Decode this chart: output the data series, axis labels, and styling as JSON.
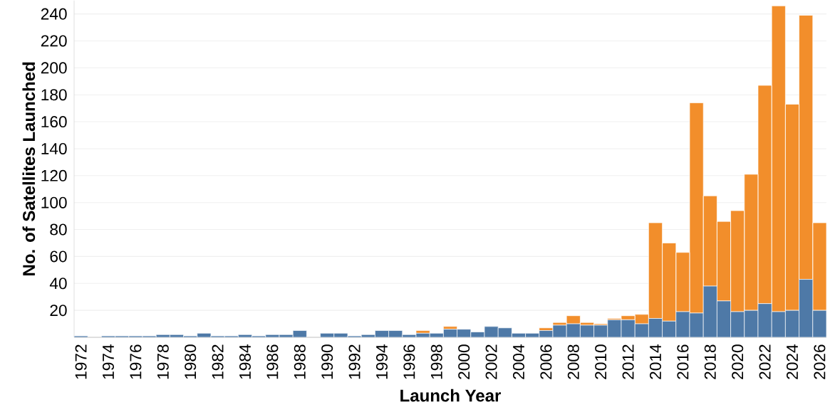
{
  "chart_data": {
    "type": "bar",
    "stacked": true,
    "xlabel": "Launch Year",
    "ylabel": "No. of Satellites Launched",
    "categories": [
      "1972",
      null,
      "1974",
      null,
      "1976",
      null,
      "1978",
      null,
      "1980",
      null,
      "1982",
      null,
      "1984",
      null,
      "1986",
      null,
      "1988",
      null,
      "1990",
      null,
      "1992",
      null,
      "1994",
      null,
      "1996",
      null,
      "1998",
      null,
      "2000",
      null,
      "2002",
      null,
      "2004",
      null,
      "2006",
      null,
      "2008",
      null,
      "2010",
      null,
      "2012",
      null,
      "2014",
      null,
      "2016",
      null,
      "2018",
      null,
      "2020",
      null,
      "2022",
      null,
      "2024",
      null,
      "2026"
    ],
    "series": [
      {
        "color": "#4e79a7",
        "values": [
          1,
          0,
          1,
          1,
          1,
          1,
          2,
          2,
          1,
          3,
          1,
          1,
          2,
          1,
          2,
          2,
          5,
          0,
          3,
          3,
          1,
          2,
          5,
          5,
          2,
          3,
          3,
          6,
          6,
          4,
          8,
          7,
          3,
          3,
          5,
          9,
          10,
          9,
          9,
          13,
          13,
          10,
          14,
          12,
          19,
          18,
          38,
          27,
          19,
          20,
          25,
          19,
          20,
          43,
          20
        ]
      },
      {
        "color": "#f28e2b",
        "values": [
          0,
          0,
          0,
          0,
          0,
          0,
          0,
          0,
          0,
          0,
          0,
          0,
          0,
          0,
          0,
          0,
          0,
          0,
          0,
          0,
          0,
          0,
          0,
          0,
          0,
          2,
          0,
          2,
          0,
          0,
          0,
          0,
          0,
          0,
          2,
          2,
          6,
          2,
          1,
          1,
          3,
          7,
          71,
          58,
          44,
          156,
          67,
          59,
          75,
          101,
          162,
          227,
          153,
          196,
          65
        ]
      }
    ],
    "ylim": [
      0,
      250
    ],
    "yticks": [
      20,
      40,
      60,
      80,
      100,
      120,
      140,
      160,
      180,
      200,
      220,
      240
    ],
    "grid": "y"
  }
}
